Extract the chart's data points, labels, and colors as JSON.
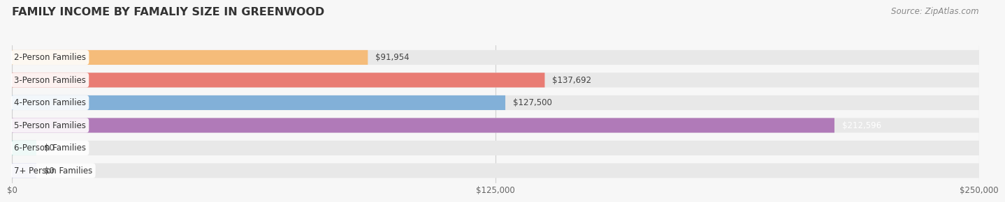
{
  "title": "FAMILY INCOME BY FAMALIY SIZE IN GREENWOOD",
  "source": "Source: ZipAtlas.com",
  "categories": [
    "2-Person Families",
    "3-Person Families",
    "4-Person Families",
    "5-Person Families",
    "6-Person Families",
    "7+ Person Families"
  ],
  "values": [
    91954,
    137692,
    127500,
    212596,
    0,
    0
  ],
  "bar_colors": [
    "#f5bc7a",
    "#e97c74",
    "#82b0d8",
    "#b07ab8",
    "#5ec4b4",
    "#b8b8e0"
  ],
  "value_labels": [
    "$91,954",
    "$137,692",
    "$127,500",
    "$212,596",
    "$0",
    "$0"
  ],
  "value_label_colors": [
    "#444444",
    "#444444",
    "#444444",
    "#ffffff",
    "#444444",
    "#444444"
  ],
  "xlim": [
    0,
    250000
  ],
  "xticks": [
    0,
    125000,
    250000
  ],
  "xtick_labels": [
    "$0",
    "$125,000",
    "$250,000"
  ],
  "background_color": "#f7f7f7",
  "bar_bg_color": "#e8e8e8",
  "title_fontsize": 11.5,
  "label_fontsize": 8.5,
  "tick_fontsize": 8.5,
  "source_fontsize": 8.5,
  "bar_height": 0.65,
  "bar_gap": 0.35
}
